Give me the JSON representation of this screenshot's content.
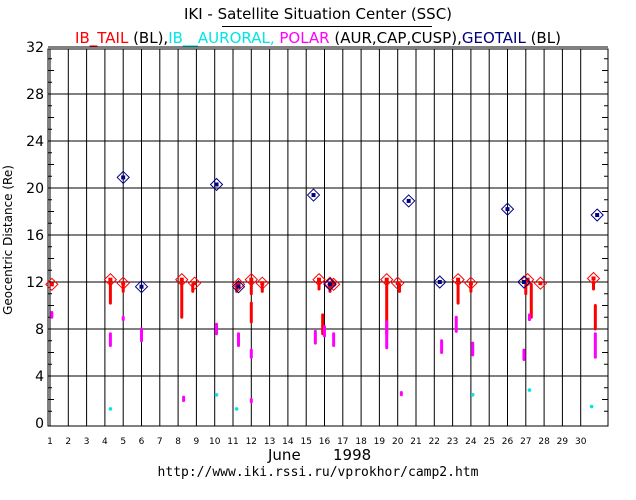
{
  "header": {
    "title": "IKI - Satellite Situation Center (SSC)"
  },
  "legend": [
    {
      "text": "IB_TAIL",
      "color": "#ff0000"
    },
    {
      "text": " (BL),",
      "color": "#000000"
    },
    {
      "text": "IB__AURORAL,",
      "color": "#00e5e5"
    },
    {
      "text": " POLAR",
      "color": "#ff00ff"
    },
    {
      "text": " (AUR,CAP,CUSP),",
      "color": "#000000"
    },
    {
      "text": "GEOTAIL",
      "color": "#000080"
    },
    {
      "text": " (BL)",
      "color": "#000000"
    }
  ],
  "footer": {
    "month": "June",
    "year": "1998",
    "url": "http://www.iki.rssi.ru/vprokhor/camp2.htm"
  },
  "chart_data": {
    "type": "scatter",
    "title": "IKI - Satellite Situation Center (SSC)",
    "xlabel": "June 1998",
    "ylabel": "Geocentric Distance (Re)",
    "xlim": [
      1,
      31
    ],
    "ylim": [
      0,
      33
    ],
    "y_ticks": [
      0,
      4,
      8,
      12,
      16,
      20,
      24,
      28,
      32
    ],
    "x_ticks": [
      1,
      2,
      3,
      4,
      5,
      6,
      7,
      8,
      9,
      10,
      11,
      12,
      13,
      14,
      15,
      16,
      17,
      18,
      19,
      20,
      21,
      22,
      23,
      24,
      25,
      26,
      27,
      28,
      29,
      30
    ],
    "colors": {
      "ib_tail": "#ff0000",
      "ib_auroral": "#00e5e5",
      "polar": "#ff00ff",
      "geotail": "#000080"
    },
    "series": [
      {
        "name": "IB_TAIL (BL) boundary markers",
        "marker": "diamond",
        "color": "#ff0000",
        "points": [
          [
            1.1,
            11.8
          ],
          [
            4.3,
            12.2
          ],
          [
            5.0,
            11.9
          ],
          [
            8.2,
            12.2
          ],
          [
            8.9,
            11.9
          ],
          [
            11.3,
            11.8
          ],
          [
            12.0,
            12.2
          ],
          [
            12.6,
            11.9
          ],
          [
            15.7,
            12.2
          ],
          [
            16.3,
            11.9
          ],
          [
            16.5,
            11.8
          ],
          [
            19.4,
            12.2
          ],
          [
            20.0,
            11.9
          ],
          [
            23.3,
            12.2
          ],
          [
            24.0,
            11.9
          ],
          [
            27.1,
            12.2
          ],
          [
            27.8,
            11.9
          ],
          [
            30.7,
            12.3
          ]
        ]
      },
      {
        "name": "IB_TAIL segments",
        "marker": "line",
        "color": "#ff0000",
        "segments": [
          [
            4.3,
            12.0,
            10.2
          ],
          [
            5.0,
            11.8,
            11.2
          ],
          [
            8.2,
            12.0,
            9.0
          ],
          [
            8.8,
            11.8,
            11.2
          ],
          [
            11.2,
            11.8,
            11.2
          ],
          [
            12.0,
            12.0,
            11.0
          ],
          [
            12.0,
            10.2,
            8.6
          ],
          [
            12.6,
            11.8,
            11.2
          ],
          [
            15.7,
            12.0,
            11.4
          ],
          [
            15.9,
            9.2,
            7.6
          ],
          [
            16.3,
            11.8,
            11.2
          ],
          [
            19.4,
            12.0,
            7.6
          ],
          [
            20.1,
            11.8,
            11.2
          ],
          [
            23.3,
            12.0,
            10.2
          ],
          [
            24.0,
            11.8,
            11.2
          ],
          [
            27.0,
            12.0,
            11.0
          ],
          [
            27.3,
            11.8,
            9.0
          ],
          [
            30.7,
            12.0,
            11.4
          ],
          [
            30.8,
            10.0,
            8.0
          ]
        ]
      },
      {
        "name": "POLAR (AUR,CAP,CUSP)",
        "marker": "dot",
        "color": "#ff00ff",
        "segments": [
          [
            1.1,
            9.4,
            9.0
          ],
          [
            4.3,
            7.6,
            6.6
          ],
          [
            5.0,
            9.0,
            8.8
          ],
          [
            6.0,
            8.0,
            7.0
          ],
          [
            8.3,
            2.2,
            1.9
          ],
          [
            10.1,
            8.4,
            7.6
          ],
          [
            11.3,
            7.6,
            6.6
          ],
          [
            12.0,
            6.2,
            5.6
          ],
          [
            12.0,
            2.0,
            1.8
          ],
          [
            15.5,
            7.8,
            6.8
          ],
          [
            16.0,
            8.2,
            7.4
          ],
          [
            16.5,
            7.6,
            6.6
          ],
          [
            19.4,
            8.6,
            6.4
          ],
          [
            20.2,
            2.6,
            2.4
          ],
          [
            22.4,
            7.0,
            6.0
          ],
          [
            23.2,
            9.0,
            7.8
          ],
          [
            24.1,
            6.8,
            5.8
          ],
          [
            26.9,
            6.2,
            5.4
          ],
          [
            27.2,
            9.2,
            8.8
          ],
          [
            30.8,
            7.6,
            5.6
          ]
        ]
      },
      {
        "name": "IB_AURORAL",
        "marker": "dot",
        "color": "#00e5e5",
        "points": [
          [
            4.3,
            1.2
          ],
          [
            10.1,
            2.4
          ],
          [
            11.2,
            1.2
          ],
          [
            24.1,
            2.4
          ],
          [
            27.2,
            2.8
          ],
          [
            30.6,
            1.4
          ]
        ]
      },
      {
        "name": "GEOTAIL (BL)",
        "marker": "diamond",
        "color": "#000080",
        "points": [
          [
            5.0,
            20.9
          ],
          [
            6.0,
            11.6
          ],
          [
            10.1,
            20.3
          ],
          [
            11.3,
            11.6
          ],
          [
            15.4,
            19.4
          ],
          [
            16.3,
            11.8
          ],
          [
            20.6,
            18.9
          ],
          [
            22.3,
            12.0
          ],
          [
            26.0,
            18.2
          ],
          [
            26.9,
            12.0
          ],
          [
            30.9,
            17.7
          ]
        ]
      }
    ]
  }
}
